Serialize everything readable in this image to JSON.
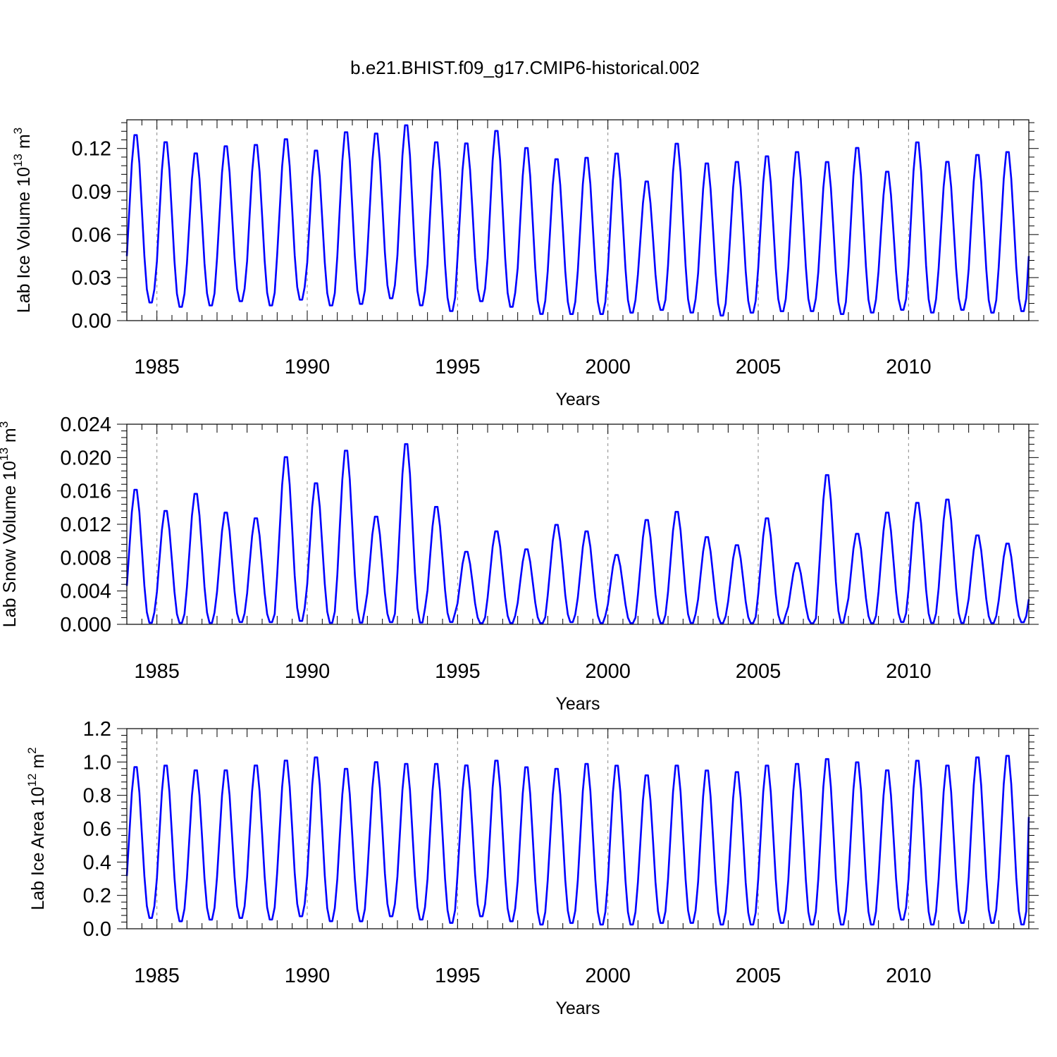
{
  "title": "b.e21.BHIST.f09_g17.CMIP6-historical.002",
  "colors": {
    "series": "#0000ff",
    "axes": "#000000",
    "grid": "#888888"
  },
  "chart_data": [
    {
      "type": "line",
      "title": "",
      "xlabel": "Years",
      "ylabel": "Lab Ice Volume 10",
      "ylabel_exp": "13",
      "ylabel_unit": " m",
      "ylabel_unit_exp": "3",
      "xlim": [
        1984,
        2014
      ],
      "ylim": [
        0,
        0.14
      ],
      "yticks": [
        "0.00",
        "0.03",
        "0.06",
        "0.09",
        "0.12"
      ],
      "ytick_values": [
        0,
        0.03,
        0.06,
        0.09,
        0.12
      ],
      "xticks": [
        "1985",
        "1990",
        "1995",
        "2000",
        "2005",
        "2010"
      ],
      "xtick_values": [
        1985,
        1990,
        1995,
        2000,
        2005,
        2010
      ],
      "grid": "vertical dashed lines at labeled years",
      "series": [
        {
          "start_year": 1984,
          "month_step": 1,
          "maxima": [
            0.132,
            0.127,
            0.119,
            0.124,
            0.125,
            0.129,
            0.121,
            0.134,
            0.133,
            0.139,
            0.127,
            0.126,
            0.135,
            0.123,
            0.115,
            0.116,
            0.119,
            0.099,
            0.126,
            0.112,
            0.113,
            0.117,
            0.12,
            0.113,
            0.123,
            0.106,
            0.127,
            0.113,
            0.118,
            0.12
          ],
          "minima": [
            0.012,
            0.009,
            0.01,
            0.013,
            0.01,
            0.014,
            0.01,
            0.011,
            0.015,
            0.01,
            0.006,
            0.013,
            0.009,
            0.004,
            0.004,
            0.004,
            0.005,
            0.007,
            0.005,
            0.003,
            0.005,
            0.006,
            0.006,
            0.004,
            0.005,
            0.007,
            0.005,
            0.007,
            0.005,
            0.006
          ],
          "final_value": 0.045
        }
      ]
    },
    {
      "type": "line",
      "title": "",
      "xlabel": "Years",
      "ylabel": "Lab Snow Volume 10",
      "ylabel_exp": "13",
      "ylabel_unit": " m",
      "ylabel_unit_exp": "3",
      "xlim": [
        1984,
        2014
      ],
      "ylim": [
        0,
        0.024
      ],
      "yticks": [
        "0.000",
        "0.004",
        "0.008",
        "0.012",
        "0.016",
        "0.020",
        "0.024"
      ],
      "ytick_values": [
        0,
        0.004,
        0.008,
        0.012,
        0.016,
        0.02,
        0.024
      ],
      "xticks": [
        "1985",
        "1990",
        "1995",
        "2000",
        "2005",
        "2010"
      ],
      "xtick_values": [
        1985,
        1990,
        1995,
        2000,
        2005,
        2010
      ],
      "grid": "vertical dashed lines at labeled years",
      "series": [
        {
          "start_year": 1984,
          "month_step": 1,
          "maxima": [
            0.0165,
            0.0139,
            0.016,
            0.0137,
            0.013,
            0.0205,
            0.0173,
            0.0213,
            0.0132,
            0.0221,
            0.0144,
            0.0089,
            0.0114,
            0.0092,
            0.0122,
            0.0114,
            0.0085,
            0.0128,
            0.0138,
            0.0107,
            0.0097,
            0.013,
            0.0075,
            0.0183,
            0.0111,
            0.0137,
            0.0149,
            0.0153,
            0.0109,
            0.0099
          ],
          "minima": [
            0.0001,
            0.0001,
            0.0001,
            0.0002,
            0.0002,
            0.0003,
            0.0001,
            0.0001,
            0.0002,
            0.0001,
            0.0002,
            0.0001,
            0.0001,
            0.0001,
            0.0002,
            0.0001,
            0.0001,
            0.0001,
            0.0001,
            0.0001,
            0.0001,
            0.0001,
            0.0001,
            0.0001,
            0.0001,
            0.0002,
            0.0001,
            0.0001,
            0.0001,
            0.0002
          ],
          "final_value": 0.003
        }
      ]
    },
    {
      "type": "line",
      "title": "",
      "xlabel": "Years",
      "ylabel": "Lab Ice Area 10",
      "ylabel_exp": "12",
      "ylabel_unit": " m",
      "ylabel_unit_exp": "2",
      "xlim": [
        1984,
        2014
      ],
      "ylim": [
        0,
        1.2
      ],
      "yticks": [
        "0.0",
        "0.2",
        "0.4",
        "0.6",
        "0.8",
        "1.0",
        "1.2"
      ],
      "ytick_values": [
        0,
        0.2,
        0.4,
        0.6,
        0.8,
        1.0,
        1.2
      ],
      "xticks": [
        "1985",
        "1990",
        "1995",
        "2000",
        "2005",
        "2010"
      ],
      "xtick_values": [
        1985,
        1990,
        1995,
        2000,
        2005,
        2010
      ],
      "grid": "vertical dashed lines at labeled years",
      "series": [
        {
          "start_year": 1984,
          "month_step": 1,
          "maxima": [
            0.99,
            1.0,
            0.97,
            0.97,
            1.0,
            1.03,
            1.05,
            0.98,
            1.02,
            1.01,
            1.01,
            1.0,
            1.03,
            0.99,
            0.98,
            1.01,
            1.0,
            0.94,
            1.0,
            0.97,
            0.96,
            1.0,
            1.01,
            1.04,
            1.02,
            0.97,
            1.03,
            1.0,
            1.05,
            1.06
          ],
          "minima": [
            0.06,
            0.04,
            0.05,
            0.06,
            0.05,
            0.07,
            0.04,
            0.04,
            0.07,
            0.05,
            0.03,
            0.07,
            0.04,
            0.02,
            0.03,
            0.02,
            0.02,
            0.03,
            0.03,
            0.02,
            0.02,
            0.03,
            0.02,
            0.02,
            0.02,
            0.05,
            0.02,
            0.03,
            0.03,
            0.02
          ],
          "final_value": 0.67
        }
      ]
    }
  ]
}
